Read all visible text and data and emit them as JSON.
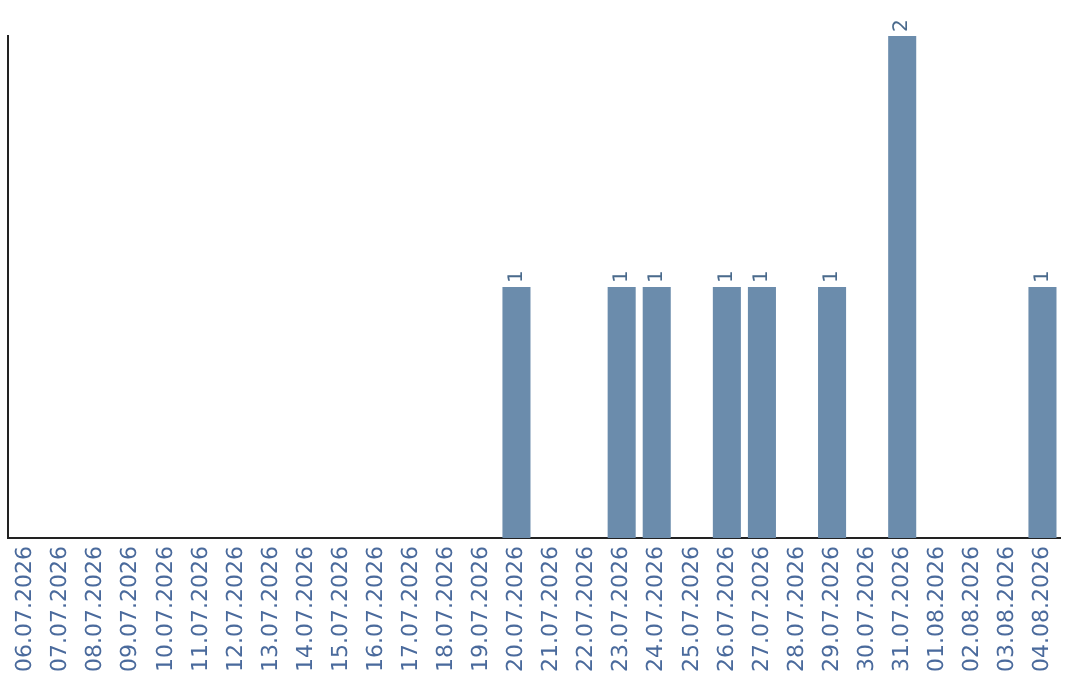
{
  "chart_data": {
    "type": "bar",
    "categories": [
      "06.07.2026",
      "07.07.2026",
      "08.07.2026",
      "09.07.2026",
      "10.07.2026",
      "11.07.2026",
      "12.07.2026",
      "13.07.2026",
      "14.07.2026",
      "15.07.2026",
      "16.07.2026",
      "17.07.2026",
      "18.07.2026",
      "19.07.2026",
      "20.07.2026",
      "21.07.2026",
      "22.07.2026",
      "23.07.2026",
      "24.07.2026",
      "25.07.2026",
      "26.07.2026",
      "27.07.2026",
      "28.07.2026",
      "29.07.2026",
      "30.07.2026",
      "31.07.2026",
      "01.08.2026",
      "02.08.2026",
      "03.08.2026",
      "04.08.2026"
    ],
    "values": [
      null,
      null,
      null,
      null,
      null,
      null,
      null,
      null,
      null,
      null,
      null,
      null,
      null,
      null,
      1,
      null,
      null,
      1,
      1,
      null,
      1,
      1,
      null,
      1,
      null,
      2,
      null,
      null,
      null,
      1
    ],
    "value_labels": [
      null,
      null,
      null,
      null,
      null,
      null,
      null,
      null,
      null,
      null,
      null,
      null,
      null,
      null,
      "1",
      null,
      null,
      "1",
      "1",
      null,
      "1",
      "1",
      null,
      "1",
      null,
      "2",
      null,
      null,
      null,
      "1"
    ],
    "color": "#6b8cac",
    "grid": false,
    "legend": false,
    "tick_labels": "x"
  }
}
